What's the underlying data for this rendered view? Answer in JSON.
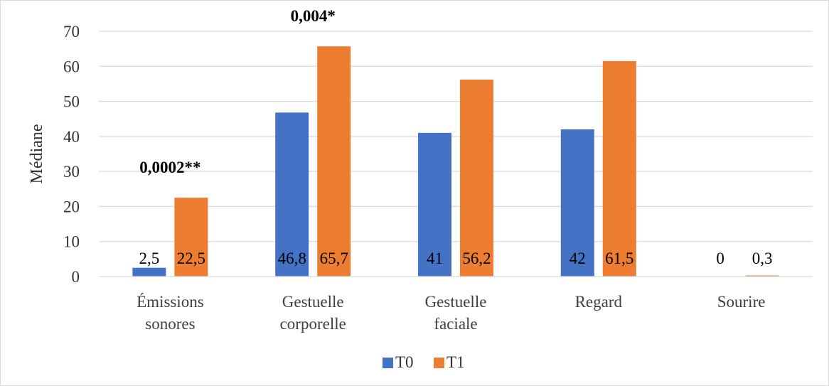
{
  "chart_data": {
    "type": "bar",
    "ylabel": "Médiane",
    "ylim": [
      0,
      70
    ],
    "yticks": [
      0,
      10,
      20,
      30,
      40,
      50,
      60,
      70
    ],
    "grid": true,
    "legend_position": "bottom",
    "categories": [
      [
        "Émissions",
        "sonores"
      ],
      [
        "Gestuelle",
        "corporelle"
      ],
      [
        "Gestuelle",
        "faciale"
      ],
      [
        "Regard"
      ],
      [
        "Sourire"
      ]
    ],
    "series": [
      {
        "name": "T0",
        "color": "#4472C4",
        "values": [
          2.5,
          46.8,
          41,
          42,
          0
        ],
        "labels": [
          "2,5",
          "46,8",
          "41",
          "42",
          "0"
        ]
      },
      {
        "name": "T1",
        "color": "#ED7D31",
        "values": [
          22.5,
          65.7,
          56.2,
          61.5,
          0.3
        ],
        "labels": [
          "22,5",
          "65,7",
          "56,2",
          "61,5",
          "0,3"
        ]
      }
    ],
    "annotations": [
      {
        "category_index": 0,
        "text": "0,0002**"
      },
      {
        "category_index": 1,
        "text": "0,004*"
      }
    ]
  }
}
